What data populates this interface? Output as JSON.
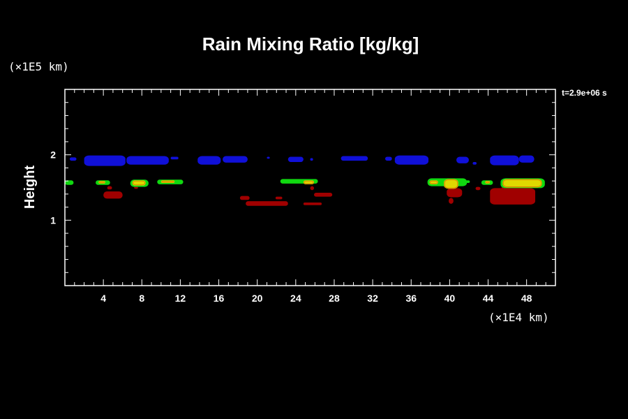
{
  "chart_data": {
    "type": "heatmap",
    "title": "Rain Mixing Ratio [kg/kg]",
    "ylabel": "Height",
    "y_unit": "(×1E5 km)",
    "x_unit": "(×1E4 km)",
    "time_label": "t=2.9e+06 s",
    "xlim": [
      0,
      51
    ],
    "ylim": [
      0,
      3
    ],
    "x_ticks": [
      "4",
      "8",
      "12",
      "16",
      "20",
      "24",
      "28",
      "32",
      "36",
      "40",
      "44",
      "48"
    ],
    "y_ticks": [
      "1",
      "2"
    ],
    "grid": false,
    "colors": {
      "blue": "#1010d8",
      "green": "#10d810",
      "yellow": "#e0d800",
      "red": "#a00000",
      "orange": "#d88000"
    },
    "features": [
      {
        "color": "blue",
        "x0": 0.5,
        "x1": 1.2,
        "y0": 1.91,
        "y1": 1.96
      },
      {
        "color": "blue",
        "x0": 2.0,
        "x1": 6.3,
        "y0": 1.83,
        "y1": 1.99
      },
      {
        "color": "blue",
        "x0": 6.4,
        "x1": 10.8,
        "y0": 1.85,
        "y1": 1.98
      },
      {
        "color": "blue",
        "x0": 11.0,
        "x1": 11.8,
        "y0": 1.93,
        "y1": 1.97
      },
      {
        "color": "blue",
        "x0": 13.8,
        "x1": 16.2,
        "y0": 1.85,
        "y1": 1.98
      },
      {
        "color": "blue",
        "x0": 16.4,
        "x1": 19.0,
        "y0": 1.88,
        "y1": 1.98
      },
      {
        "color": "blue",
        "x0": 21.0,
        "x1": 21.3,
        "y0": 1.94,
        "y1": 1.97
      },
      {
        "color": "blue",
        "x0": 23.2,
        "x1": 24.8,
        "y0": 1.89,
        "y1": 1.97
      },
      {
        "color": "blue",
        "x0": 25.5,
        "x1": 25.8,
        "y0": 1.91,
        "y1": 1.95
      },
      {
        "color": "blue",
        "x0": 28.7,
        "x1": 31.5,
        "y0": 1.91,
        "y1": 1.98
      },
      {
        "color": "blue",
        "x0": 33.3,
        "x1": 34.0,
        "y0": 1.91,
        "y1": 1.97
      },
      {
        "color": "blue",
        "x0": 34.3,
        "x1": 37.8,
        "y0": 1.85,
        "y1": 1.99
      },
      {
        "color": "blue",
        "x0": 40.7,
        "x1": 42.0,
        "y0": 1.87,
        "y1": 1.97
      },
      {
        "color": "blue",
        "x0": 42.4,
        "x1": 42.8,
        "y0": 1.85,
        "y1": 1.89
      },
      {
        "color": "blue",
        "x0": 44.2,
        "x1": 47.2,
        "y0": 1.84,
        "y1": 1.99
      },
      {
        "color": "blue",
        "x0": 47.2,
        "x1": 48.8,
        "y0": 1.88,
        "y1": 1.99
      },
      {
        "color": "green",
        "x0": 0.0,
        "x1": 0.9,
        "y0": 1.54,
        "y1": 1.61
      },
      {
        "color": "green",
        "x0": 3.2,
        "x1": 4.7,
        "y0": 1.54,
        "y1": 1.61
      },
      {
        "color": "green",
        "x0": 6.8,
        "x1": 8.7,
        "y0": 1.51,
        "y1": 1.62
      },
      {
        "color": "green",
        "x0": 9.6,
        "x1": 12.3,
        "y0": 1.55,
        "y1": 1.62
      },
      {
        "color": "green",
        "x0": 22.4,
        "x1": 26.3,
        "y0": 1.56,
        "y1": 1.63
      },
      {
        "color": "green",
        "x0": 37.7,
        "x1": 41.8,
        "y0": 1.52,
        "y1": 1.64
      },
      {
        "color": "green",
        "x0": 43.3,
        "x1": 44.5,
        "y0": 1.54,
        "y1": 1.61
      },
      {
        "color": "green",
        "x0": 45.3,
        "x1": 49.9,
        "y0": 1.49,
        "y1": 1.64
      },
      {
        "color": "green",
        "x0": 41.7,
        "x1": 42.1,
        "y0": 1.57,
        "y1": 1.61
      },
      {
        "color": "yellow",
        "x0": 3.5,
        "x1": 4.2,
        "y0": 1.56,
        "y1": 1.6
      },
      {
        "color": "yellow",
        "x0": 7.0,
        "x1": 8.4,
        "y0": 1.53,
        "y1": 1.61
      },
      {
        "color": "yellow",
        "x0": 10.0,
        "x1": 11.4,
        "y0": 1.57,
        "y1": 1.61
      },
      {
        "color": "yellow",
        "x0": 24.8,
        "x1": 25.9,
        "y0": 1.55,
        "y1": 1.61
      },
      {
        "color": "yellow",
        "x0": 37.9,
        "x1": 38.8,
        "y0": 1.55,
        "y1": 1.61
      },
      {
        "color": "yellow",
        "x0": 39.4,
        "x1": 40.9,
        "y0": 1.48,
        "y1": 1.63
      },
      {
        "color": "yellow",
        "x0": 43.7,
        "x1": 44.2,
        "y0": 1.56,
        "y1": 1.6
      },
      {
        "color": "yellow",
        "x0": 45.5,
        "x1": 49.6,
        "y0": 1.5,
        "y1": 1.63
      },
      {
        "color": "red",
        "x0": 4.4,
        "x1": 4.9,
        "y0": 1.47,
        "y1": 1.52
      },
      {
        "color": "red",
        "x0": 4.0,
        "x1": 6.0,
        "y0": 1.33,
        "y1": 1.44
      },
      {
        "color": "red",
        "x0": 7.2,
        "x1": 7.6,
        "y0": 1.48,
        "y1": 1.52
      },
      {
        "color": "red",
        "x0": 18.2,
        "x1": 19.2,
        "y0": 1.31,
        "y1": 1.37
      },
      {
        "color": "red",
        "x0": 18.8,
        "x1": 23.2,
        "y0": 1.22,
        "y1": 1.29
      },
      {
        "color": "red",
        "x0": 21.9,
        "x1": 22.6,
        "y0": 1.32,
        "y1": 1.36
      },
      {
        "color": "red",
        "x0": 24.8,
        "x1": 26.7,
        "y0": 1.23,
        "y1": 1.27
      },
      {
        "color": "red",
        "x0": 25.9,
        "x1": 27.8,
        "y0": 1.36,
        "y1": 1.42
      },
      {
        "color": "red",
        "x0": 25.5,
        "x1": 25.9,
        "y0": 1.46,
        "y1": 1.52
      },
      {
        "color": "red",
        "x0": 39.7,
        "x1": 41.3,
        "y0": 1.35,
        "y1": 1.49
      },
      {
        "color": "red",
        "x0": 39.9,
        "x1": 40.4,
        "y0": 1.25,
        "y1": 1.34
      },
      {
        "color": "red",
        "x0": 42.7,
        "x1": 43.2,
        "y0": 1.46,
        "y1": 1.51
      },
      {
        "color": "red",
        "x0": 44.2,
        "x1": 48.9,
        "y0": 1.24,
        "y1": 1.49
      },
      {
        "color": "red",
        "x0": 45.4,
        "x1": 46.3,
        "y0": 1.47,
        "y1": 1.53
      }
    ]
  }
}
